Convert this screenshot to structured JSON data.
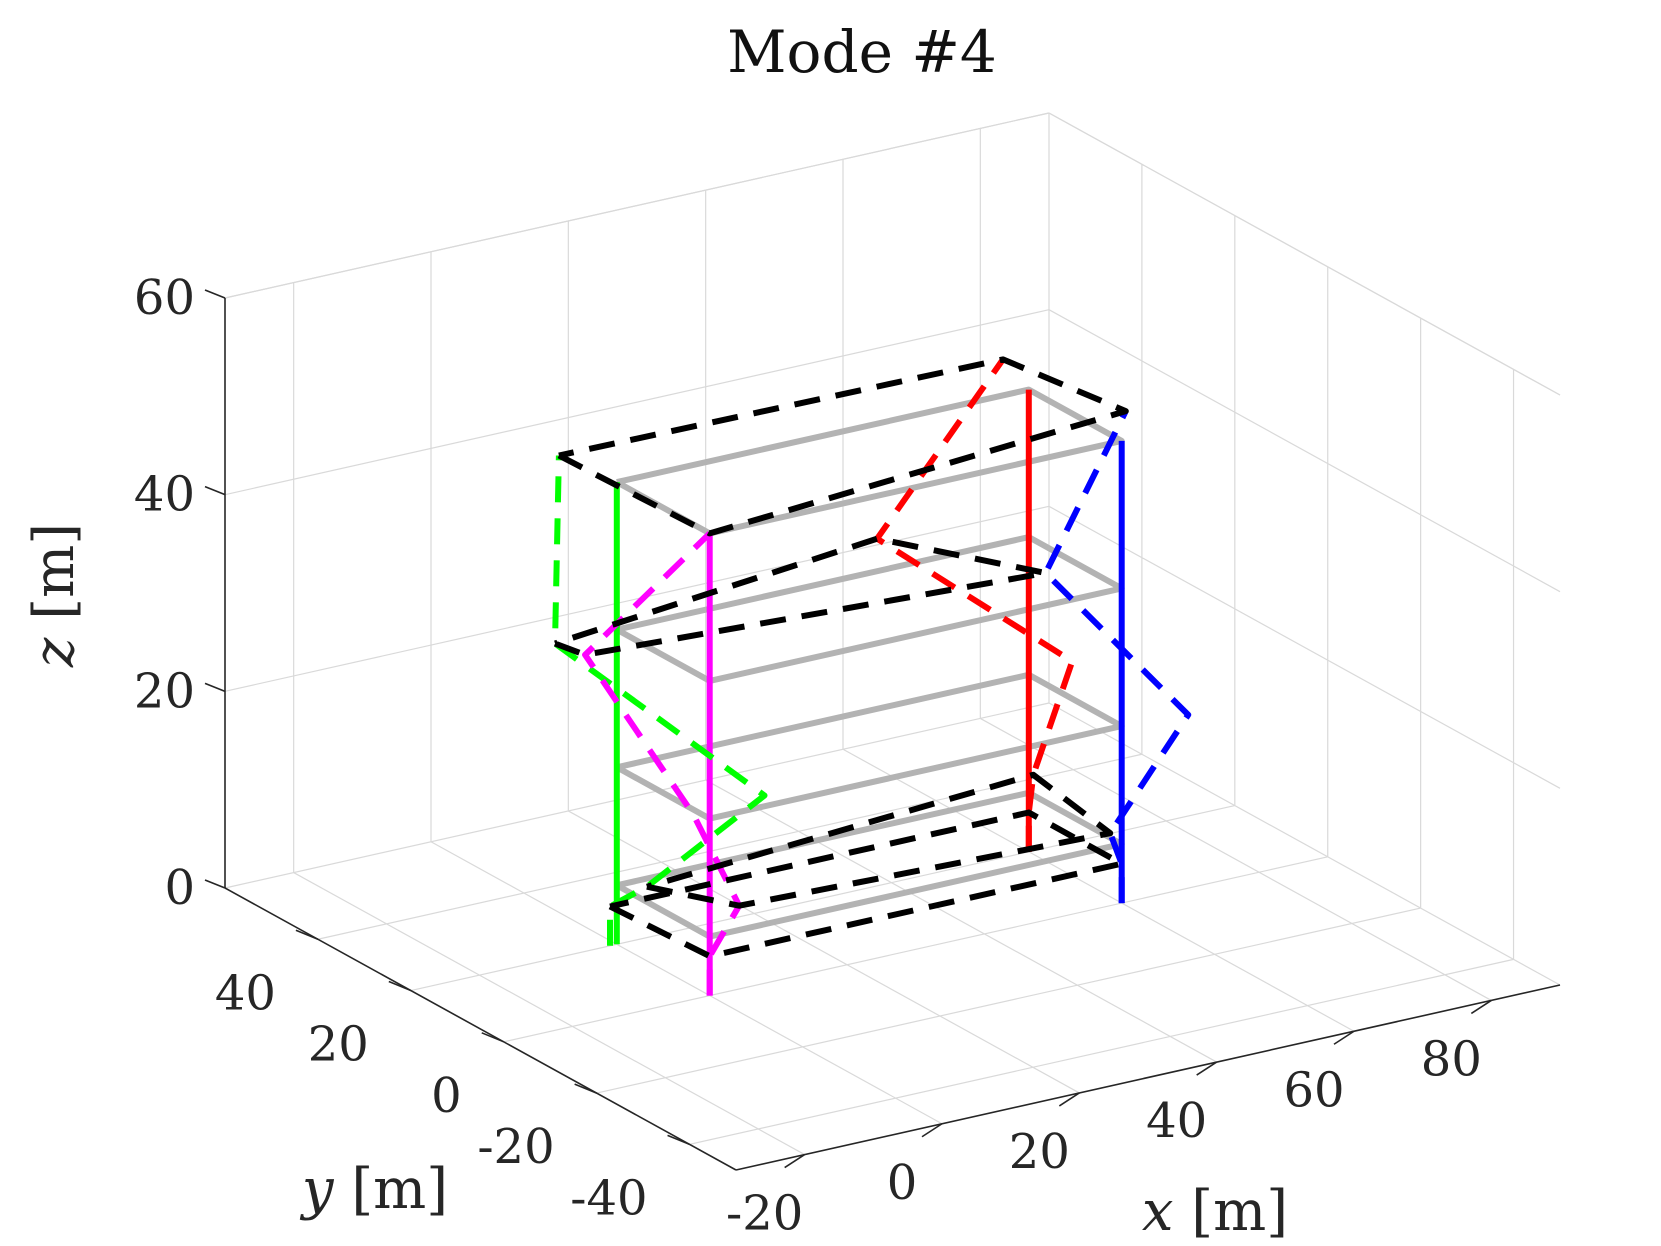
{
  "chart_data": {
    "type": "line",
    "projection": "3d",
    "title": "Mode #4",
    "xlabel": {
      "var": "x",
      "unit": "[m]"
    },
    "ylabel": {
      "var": "y",
      "unit": "[m]"
    },
    "zlabel": {
      "var": "z",
      "unit": "[m]"
    },
    "xlim": [
      -30,
      90
    ],
    "ylim": [
      -50,
      60
    ],
    "zlim": [
      0,
      60
    ],
    "xticks": [
      -20,
      0,
      20,
      40,
      60,
      80
    ],
    "yticks": [
      -40,
      -20,
      0,
      20,
      40
    ],
    "zticks": [
      0,
      20,
      40,
      60
    ],
    "xtick_labels": [
      "-20",
      "0",
      "20",
      "40",
      "60",
      "80"
    ],
    "ytick_labels": [
      "-40",
      "-20",
      "0",
      "20",
      "40"
    ],
    "ztick_labels": [
      "0",
      "20",
      "40",
      "60"
    ],
    "grid": true,
    "structure": {
      "columns_xy": {
        "green": [
          0,
          20
        ],
        "magenta": [
          0,
          0
        ],
        "red": [
          60,
          20
        ],
        "blue": [
          60,
          0
        ]
      },
      "floor_levels": [
        6,
        18,
        32,
        47
      ],
      "base_level": 0
    },
    "series": [
      {
        "style": "undeformed-floors",
        "color": "#b3b3b3",
        "dash": "solid",
        "floors": [
          [
            [
              0,
              20,
              6
            ],
            [
              0,
              0,
              6
            ],
            [
              60,
              0,
              6
            ],
            [
              60,
              20,
              6
            ]
          ],
          [
            [
              0,
              20,
              18
            ],
            [
              0,
              0,
              18
            ],
            [
              60,
              0,
              18
            ],
            [
              60,
              20,
              18
            ]
          ],
          [
            [
              0,
              20,
              32
            ],
            [
              0,
              0,
              32
            ],
            [
              60,
              0,
              32
            ],
            [
              60,
              20,
              32
            ]
          ],
          [
            [
              0,
              20,
              47
            ],
            [
              0,
              0,
              47
            ],
            [
              60,
              0,
              47
            ],
            [
              60,
              20,
              47
            ]
          ]
        ]
      },
      {
        "style": "undeformed-column",
        "color": "#00ff00",
        "dash": "solid",
        "points": [
          [
            0,
            20,
            0
          ],
          [
            0,
            20,
            47
          ]
        ]
      },
      {
        "style": "undeformed-column",
        "color": "#ff00ff",
        "dash": "solid",
        "points": [
          [
            0,
            0,
            0
          ],
          [
            0,
            0,
            47
          ]
        ]
      },
      {
        "style": "undeformed-column",
        "color": "#ff0000",
        "dash": "solid",
        "points": [
          [
            60,
            20,
            0
          ],
          [
            60,
            20,
            47
          ]
        ]
      },
      {
        "style": "undeformed-column",
        "color": "#0000ff",
        "dash": "solid",
        "points": [
          [
            60,
            0,
            0
          ],
          [
            60,
            0,
            47
          ]
        ]
      },
      {
        "style": "deformed-column",
        "color": "#00ff00",
        "dash": "dashed",
        "points": [
          [
            -1,
            20,
            0
          ],
          [
            -1,
            20,
            4
          ],
          [
            1,
            15,
            7
          ],
          [
            10,
            3,
            18
          ],
          [
            -9,
            20,
            32
          ],
          [
            -1,
            31,
            47
          ]
        ]
      },
      {
        "style": "deformed-column",
        "color": "#ff00ff",
        "dash": "dashed",
        "points": [
          [
            0,
            0,
            0
          ],
          [
            0,
            0,
            4
          ],
          [
            7,
            4,
            7
          ],
          [
            -1,
            2,
            18
          ],
          [
            -8,
            15,
            32
          ],
          [
            0,
            0,
            47
          ]
        ]
      },
      {
        "style": "deformed-column",
        "color": "#ff0000",
        "dash": "dashed",
        "points": [
          [
            60,
            20,
            0
          ],
          [
            60,
            20,
            4
          ],
          [
            62,
            22,
            7
          ],
          [
            67,
            21,
            18
          ],
          [
            44,
            29,
            32
          ],
          [
            63,
            30,
            47
          ]
        ]
      },
      {
        "style": "deformed-column",
        "color": "#0000ff",
        "dash": "dashed",
        "points": [
          [
            60,
            0,
            0
          ],
          [
            60,
            0,
            4
          ],
          [
            59,
            1,
            7
          ],
          [
            69,
            -1,
            18
          ],
          [
            55,
            9,
            32
          ],
          [
            66,
            8,
            47
          ]
        ]
      },
      {
        "style": "deformed-floors",
        "color": "#000000",
        "dash": "dashed",
        "floors": [
          [
            [
              -1,
              20,
              4
            ],
            [
              0,
              0,
              4
            ],
            [
              60,
              0,
              4
            ],
            [
              60,
              20,
              4
            ]
          ],
          [
            [
              1,
              15,
              7
            ],
            [
              7,
              4,
              7
            ],
            [
              59,
              1,
              7
            ],
            [
              62,
              22,
              7
            ]
          ],
          [
            [
              -9,
              20,
              32
            ],
            [
              -8,
              15,
              32
            ],
            [
              55,
              9,
              32
            ],
            [
              44,
              29,
              32
            ]
          ],
          [
            [
              -1,
              31,
              47
            ],
            [
              0,
              0,
              47
            ],
            [
              66,
              8,
              47
            ],
            [
              63,
              30,
              47
            ]
          ]
        ]
      }
    ]
  }
}
